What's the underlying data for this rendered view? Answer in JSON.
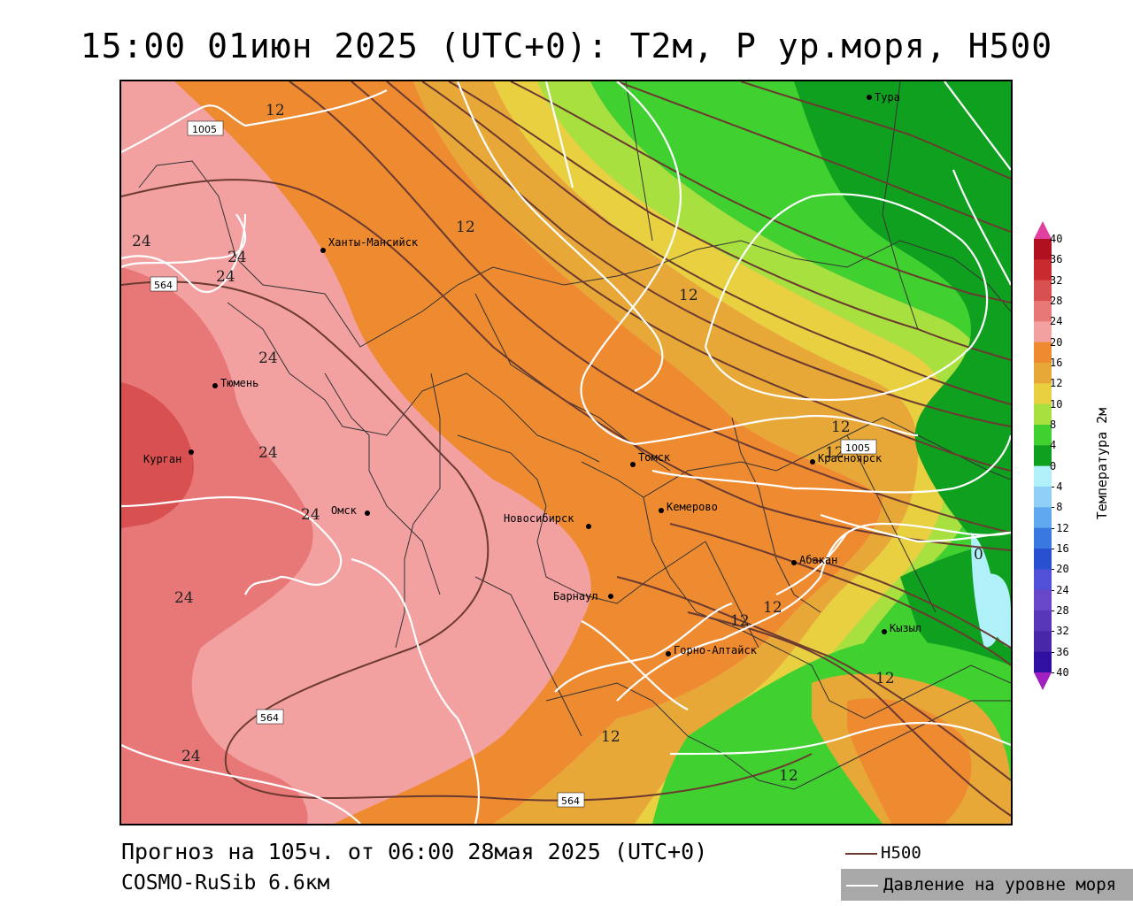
{
  "title": "15:00 01июн 2025 (UTC+0): T2м, P ур.моря, H500",
  "footer": {
    "forecast": "Прогноз на 105ч. от 06:00 28мая 2025 (UTC+0)",
    "model": "COSMO-RuSib 6.6км"
  },
  "legend": {
    "h500": "H500",
    "pressure": "Давление на уровне моря"
  },
  "colorbar": {
    "title": "Температура 2м",
    "ticks": [
      "40",
      "36",
      "32",
      "28",
      "24",
      "20",
      "16",
      "12",
      "10",
      "8",
      "4",
      "0",
      "-4",
      "-8",
      "-12",
      "-16",
      "-20",
      "-24",
      "-28",
      "-32",
      "-36",
      "-40"
    ],
    "colors": [
      "#b01020",
      "#c82a30",
      "#d85050",
      "#e87878",
      "#f3a0a0",
      "#ee8a30",
      "#e8a838",
      "#e8d040",
      "#a8e040",
      "#40d030",
      "#10a020",
      "#b0f0f8",
      "#90d0f8",
      "#60a8f0",
      "#3878e0",
      "#2850d0",
      "#5050d8",
      "#6848c8",
      "#5838b8",
      "#4828a8",
      "#3010a0"
    ]
  },
  "cities": [
    {
      "name": "Тура"
    },
    {
      "name": "Ханты-Мансийск"
    },
    {
      "name": "Тюмень"
    },
    {
      "name": "Курган"
    },
    {
      "name": "Омск"
    },
    {
      "name": "Новосибирск"
    },
    {
      "name": "Томск"
    },
    {
      "name": "Кемерово"
    },
    {
      "name": "Красноярск"
    },
    {
      "name": "Абакан"
    },
    {
      "name": "Барнаул"
    },
    {
      "name": "Горно-Алтайск"
    },
    {
      "name": "Кызыл"
    }
  ],
  "contour_labels": {
    "temp": [
      "12",
      "24",
      "24",
      "24",
      "24",
      "24",
      "24",
      "24",
      "12",
      "12",
      "12",
      "12",
      "12",
      "12",
      "12",
      "12",
      "12",
      "24",
      "0"
    ],
    "pressure_boxes": [
      "1005",
      "1005"
    ],
    "h500_boxes": [
      "564",
      "564",
      "564"
    ]
  }
}
